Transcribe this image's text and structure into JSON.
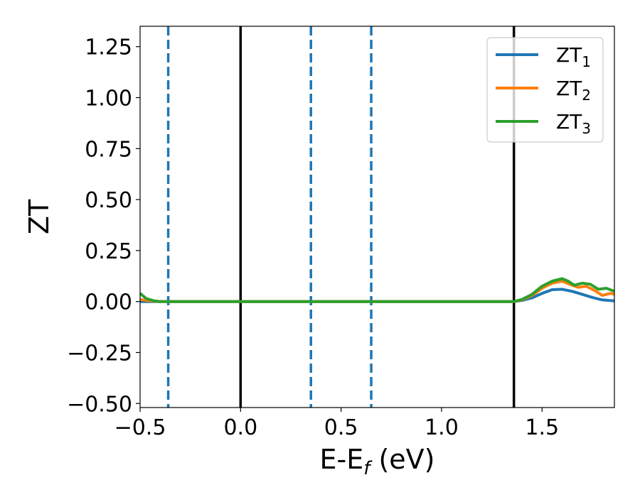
{
  "chart_data": {
    "type": "line",
    "xlabel_main": "E-E",
    "xlabel_sub": "f",
    "xlabel_unit": " (eV)",
    "ylabel": "ZT",
    "xlim": [
      -0.5,
      1.86
    ],
    "ylim": [
      -0.52,
      1.35
    ],
    "x_ticks": [
      -0.5,
      0.0,
      0.5,
      1.0,
      1.5
    ],
    "x_tick_labels": [
      "−0.5",
      "0.0",
      "0.5",
      "1.0",
      "1.5"
    ],
    "y_ticks": [
      -0.5,
      -0.25,
      0.0,
      0.25,
      0.5,
      0.75,
      1.0,
      1.25
    ],
    "y_tick_labels": [
      "−0.50",
      "−0.25",
      "0.00",
      "0.25",
      "0.50",
      "0.75",
      "1.00",
      "1.25"
    ],
    "vlines": [
      {
        "x": -0.36,
        "style": "dashed",
        "color": "#1f77b4"
      },
      {
        "x": 0.0,
        "style": "solid",
        "color": "#000000"
      },
      {
        "x": 0.35,
        "style": "dashed",
        "color": "#1f77b4"
      },
      {
        "x": 0.65,
        "style": "dashed",
        "color": "#1f77b4"
      },
      {
        "x": 1.36,
        "style": "solid",
        "color": "#000000"
      }
    ],
    "series": [
      {
        "name_main": "ZT",
        "name_sub": "1",
        "color": "#1f77b4",
        "points": [
          [
            -0.5,
            0.0
          ],
          [
            -0.45,
            0.0
          ],
          [
            -0.4,
            0.0
          ],
          [
            0.0,
            0.0
          ],
          [
            0.5,
            0.0
          ],
          [
            1.0,
            0.0
          ],
          [
            1.36,
            0.0
          ],
          [
            1.4,
            0.005
          ],
          [
            1.45,
            0.018
          ],
          [
            1.5,
            0.04
          ],
          [
            1.55,
            0.058
          ],
          [
            1.6,
            0.06
          ],
          [
            1.65,
            0.05
          ],
          [
            1.7,
            0.035
          ],
          [
            1.75,
            0.02
          ],
          [
            1.8,
            0.008
          ],
          [
            1.86,
            0.003
          ]
        ]
      },
      {
        "name_main": "ZT",
        "name_sub": "2",
        "color": "#ff7f0e",
        "points": [
          [
            -0.5,
            0.01
          ],
          [
            -0.45,
            0.003
          ],
          [
            -0.4,
            0.0
          ],
          [
            0.0,
            0.0
          ],
          [
            0.5,
            0.0
          ],
          [
            1.0,
            0.0
          ],
          [
            1.36,
            0.0
          ],
          [
            1.4,
            0.008
          ],
          [
            1.45,
            0.03
          ],
          [
            1.5,
            0.065
          ],
          [
            1.55,
            0.09
          ],
          [
            1.6,
            0.1
          ],
          [
            1.65,
            0.08
          ],
          [
            1.68,
            0.07
          ],
          [
            1.72,
            0.075
          ],
          [
            1.76,
            0.055
          ],
          [
            1.8,
            0.03
          ],
          [
            1.84,
            0.04
          ],
          [
            1.86,
            0.035
          ]
        ]
      },
      {
        "name_main": "ZT",
        "name_sub": "3",
        "color": "#2ca02c",
        "points": [
          [
            -0.5,
            0.04
          ],
          [
            -0.47,
            0.015
          ],
          [
            -0.43,
            0.003
          ],
          [
            -0.4,
            0.0
          ],
          [
            0.0,
            0.0
          ],
          [
            0.5,
            0.0
          ],
          [
            1.0,
            0.0
          ],
          [
            1.36,
            0.0
          ],
          [
            1.4,
            0.01
          ],
          [
            1.45,
            0.035
          ],
          [
            1.5,
            0.075
          ],
          [
            1.55,
            0.1
          ],
          [
            1.6,
            0.112
          ],
          [
            1.63,
            0.1
          ],
          [
            1.66,
            0.08
          ],
          [
            1.7,
            0.09
          ],
          [
            1.74,
            0.085
          ],
          [
            1.78,
            0.06
          ],
          [
            1.82,
            0.065
          ],
          [
            1.86,
            0.05
          ]
        ]
      }
    ],
    "legend_position": "top-right",
    "grid": false
  }
}
